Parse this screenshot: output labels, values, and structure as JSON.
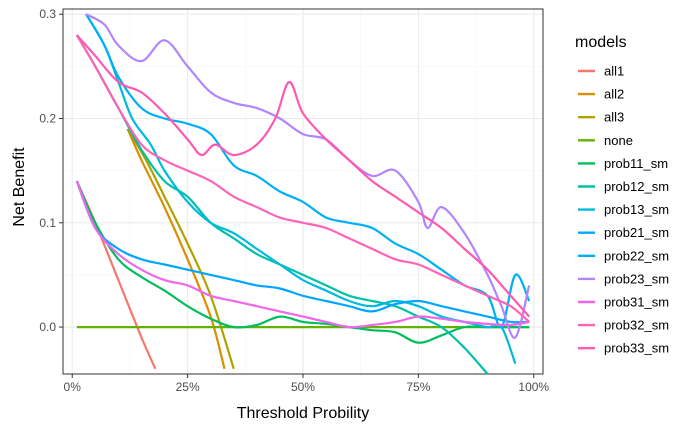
{
  "chart_data": {
    "type": "line",
    "title": "",
    "xlabel": "Threshold Probility",
    "ylabel": "Net Benefit",
    "xlim": [
      -0.02,
      1.02
    ],
    "ylim": [
      -0.045,
      0.305
    ],
    "x_ticks": [
      0,
      0.25,
      0.5,
      0.75,
      1.0
    ],
    "x_tick_labels": [
      "0%",
      "25%",
      "50%",
      "75%",
      "100%"
    ],
    "y_ticks": [
      0.0,
      0.1,
      0.2,
      0.3
    ],
    "y_tick_labels": [
      "0.0",
      "0.1",
      "0.2",
      "0.3"
    ],
    "grid": true,
    "legend": {
      "title": "models",
      "position": "right"
    },
    "series": [
      {
        "name": "all1",
        "color": "#F8766D",
        "x": [
          0.01,
          0.05,
          0.1,
          0.15,
          0.18
        ],
        "y": [
          0.14,
          0.1,
          0.045,
          -0.01,
          -0.04
        ]
      },
      {
        "name": "all2",
        "color": "#DB8E00",
        "x": [
          0.12,
          0.15,
          0.2,
          0.25,
          0.3,
          0.33
        ],
        "y": [
          0.19,
          0.16,
          0.115,
          0.065,
          0.01,
          -0.04
        ]
      },
      {
        "name": "all3",
        "color": "#AEA200",
        "x": [
          0.12,
          0.16,
          0.2,
          0.25,
          0.3,
          0.35
        ],
        "y": [
          0.19,
          0.16,
          0.125,
          0.08,
          0.03,
          -0.04
        ]
      },
      {
        "name": "none",
        "color": "#64B200",
        "x": [
          0.01,
          0.99
        ],
        "y": [
          0.0,
          0.0
        ]
      },
      {
        "name": "prob11_sm",
        "color": "#00BD5C",
        "x": [
          0.01,
          0.05,
          0.1,
          0.15,
          0.2,
          0.25,
          0.3,
          0.35,
          0.4,
          0.45,
          0.5,
          0.55,
          0.6,
          0.65,
          0.7,
          0.75,
          0.8,
          0.85,
          0.9,
          0.95,
          0.99
        ],
        "y": [
          0.14,
          0.1,
          0.065,
          0.048,
          0.035,
          0.02,
          0.008,
          0.0,
          0.002,
          0.01,
          0.005,
          0.003,
          0.0,
          -0.003,
          -0.005,
          -0.015,
          -0.008,
          0.0,
          0.0,
          0.0,
          0.0
        ]
      },
      {
        "name": "prob12_sm",
        "color": "#00C1A7",
        "x": [
          0.01,
          0.05,
          0.1,
          0.15,
          0.2,
          0.25,
          0.3,
          0.35,
          0.4,
          0.45,
          0.5,
          0.55,
          0.6,
          0.65,
          0.7,
          0.75,
          0.8,
          0.85,
          0.9
        ],
        "y": [
          0.28,
          0.25,
          0.21,
          0.17,
          0.14,
          0.125,
          0.1,
          0.085,
          0.07,
          0.06,
          0.05,
          0.04,
          0.03,
          0.025,
          0.02,
          0.01,
          0.0,
          -0.02,
          -0.045
        ]
      },
      {
        "name": "prob13_sm",
        "color": "#00BADE",
        "x": [
          0.03,
          0.07,
          0.1,
          0.13,
          0.17,
          0.2,
          0.25,
          0.3,
          0.35,
          0.4,
          0.45,
          0.5,
          0.55,
          0.6,
          0.65,
          0.7,
          0.75,
          0.8,
          0.85,
          0.9,
          0.93,
          0.96
        ],
        "y": [
          0.3,
          0.27,
          0.235,
          0.2,
          0.175,
          0.15,
          0.12,
          0.1,
          0.09,
          0.075,
          0.06,
          0.045,
          0.035,
          0.025,
          0.02,
          0.025,
          0.02,
          0.01,
          0.005,
          0.0,
          0.0,
          -0.035
        ]
      },
      {
        "name": "prob21_sm",
        "color": "#00A6FF",
        "x": [
          0.01,
          0.05,
          0.1,
          0.15,
          0.2,
          0.25,
          0.3,
          0.35,
          0.4,
          0.45,
          0.5,
          0.55,
          0.6,
          0.65,
          0.7,
          0.75,
          0.8,
          0.85,
          0.9,
          0.95,
          0.99
        ],
        "y": [
          0.14,
          0.095,
          0.075,
          0.065,
          0.06,
          0.055,
          0.05,
          0.045,
          0.04,
          0.037,
          0.03,
          0.025,
          0.02,
          0.015,
          0.022,
          0.025,
          0.02,
          0.015,
          0.01,
          0.005,
          0.005
        ]
      },
      {
        "name": "prob22_sm",
        "color": "#00B0F6",
        "x": [
          0.03,
          0.07,
          0.1,
          0.15,
          0.2,
          0.25,
          0.3,
          0.35,
          0.4,
          0.45,
          0.5,
          0.55,
          0.6,
          0.65,
          0.7,
          0.75,
          0.8,
          0.85,
          0.9,
          0.93,
          0.96,
          0.99
        ],
        "y": [
          0.3,
          0.27,
          0.24,
          0.21,
          0.2,
          0.195,
          0.185,
          0.155,
          0.145,
          0.13,
          0.12,
          0.105,
          0.1,
          0.095,
          0.08,
          0.07,
          0.055,
          0.04,
          0.03,
          0.0,
          0.05,
          0.025
        ]
      },
      {
        "name": "prob23_sm",
        "color": "#B385FF",
        "x": [
          0.03,
          0.07,
          0.1,
          0.15,
          0.2,
          0.25,
          0.3,
          0.35,
          0.4,
          0.45,
          0.5,
          0.55,
          0.6,
          0.65,
          0.7,
          0.75,
          0.77,
          0.8,
          0.85,
          0.9,
          0.93,
          0.96,
          0.99
        ],
        "y": [
          0.3,
          0.29,
          0.27,
          0.255,
          0.275,
          0.25,
          0.225,
          0.215,
          0.21,
          0.2,
          0.185,
          0.18,
          0.16,
          0.145,
          0.15,
          0.12,
          0.095,
          0.115,
          0.09,
          0.05,
          0.02,
          -0.01,
          0.04
        ]
      },
      {
        "name": "prob31_sm",
        "color": "#EF67EB",
        "x": [
          0.01,
          0.05,
          0.1,
          0.15,
          0.2,
          0.25,
          0.3,
          0.35,
          0.4,
          0.45,
          0.5,
          0.55,
          0.6,
          0.65,
          0.7,
          0.75,
          0.8,
          0.85,
          0.9,
          0.95,
          0.99
        ],
        "y": [
          0.14,
          0.095,
          0.07,
          0.055,
          0.045,
          0.04,
          0.03,
          0.025,
          0.02,
          0.015,
          0.01,
          0.005,
          0.0,
          0.002,
          0.005,
          0.01,
          0.008,
          0.005,
          0.003,
          0.002,
          0.005
        ]
      },
      {
        "name": "prob32_sm",
        "color": "#FF63B6",
        "x": [
          0.01,
          0.05,
          0.1,
          0.15,
          0.2,
          0.25,
          0.3,
          0.35,
          0.4,
          0.45,
          0.5,
          0.55,
          0.6,
          0.65,
          0.7,
          0.75,
          0.8,
          0.85,
          0.9,
          0.95,
          0.99
        ],
        "y": [
          0.28,
          0.25,
          0.21,
          0.175,
          0.16,
          0.15,
          0.14,
          0.125,
          0.115,
          0.105,
          0.1,
          0.095,
          0.085,
          0.075,
          0.065,
          0.06,
          0.05,
          0.04,
          0.03,
          0.02,
          0.005
        ]
      },
      {
        "name": "prob33_sm",
        "color": "#FF59B0",
        "x": [
          0.01,
          0.05,
          0.1,
          0.15,
          0.2,
          0.25,
          0.28,
          0.31,
          0.35,
          0.4,
          0.44,
          0.47,
          0.5,
          0.55,
          0.6,
          0.65,
          0.7,
          0.75,
          0.8,
          0.85,
          0.9,
          0.95,
          0.99
        ],
        "y": [
          0.28,
          0.26,
          0.235,
          0.225,
          0.205,
          0.18,
          0.165,
          0.175,
          0.165,
          0.175,
          0.2,
          0.235,
          0.205,
          0.18,
          0.16,
          0.14,
          0.125,
          0.11,
          0.095,
          0.075,
          0.055,
          0.03,
          0.01
        ]
      }
    ]
  }
}
